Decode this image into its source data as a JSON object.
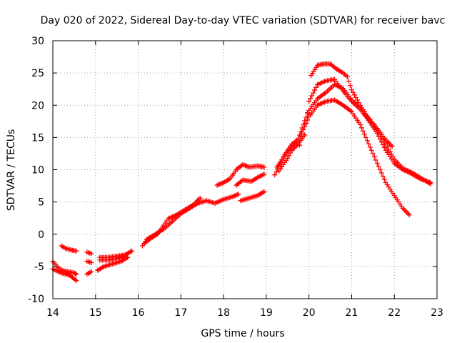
{
  "chart_data": {
    "type": "scatter",
    "title": "Day 020 of 2022, Sidereal Day-to-day VTEC variation (SDTVAR) for receiver bavc",
    "xlabel": "GPS time / hours",
    "ylabel": "SDTVAR / TECUs",
    "xlim": [
      14,
      23
    ],
    "ylim": [
      -10,
      30
    ],
    "xticks": [
      14,
      15,
      16,
      17,
      18,
      19,
      20,
      21,
      22,
      23
    ],
    "yticks": [
      -10,
      -5,
      0,
      5,
      10,
      15,
      20,
      25,
      30
    ],
    "grid": true,
    "marker": "+",
    "color": "#ff0000",
    "series": [
      {
        "name": "satellite-a",
        "segments": [
          [
            [
              14.0,
              -4.2
            ],
            [
              14.1,
              -5.0
            ],
            [
              14.2,
              -5.6
            ],
            [
              14.35,
              -5.8
            ],
            [
              14.5,
              -6.0
            ],
            [
              14.55,
              -6.2
            ]
          ],
          [
            [
              14.8,
              -6.2
            ],
            [
              14.9,
              -5.8
            ]
          ],
          [
            [
              15.05,
              -5.6
            ],
            [
              15.2,
              -5.0
            ],
            [
              15.4,
              -4.6
            ],
            [
              15.6,
              -4.2
            ],
            [
              15.75,
              -3.6
            ]
          ],
          [
            [
              16.1,
              -1.8
            ],
            [
              16.2,
              -0.8
            ],
            [
              16.4,
              0.0
            ],
            [
              16.6,
              0.8
            ],
            [
              16.8,
              2.0
            ],
            [
              17.0,
              3.2
            ],
            [
              17.2,
              4.0
            ],
            [
              17.4,
              4.8
            ],
            [
              17.6,
              5.2
            ],
            [
              17.8,
              4.8
            ],
            [
              18.0,
              5.4
            ],
            [
              18.2,
              5.8
            ],
            [
              18.35,
              6.2
            ]
          ],
          [
            [
              18.3,
              7.6
            ],
            [
              18.45,
              8.4
            ],
            [
              18.65,
              8.2
            ],
            [
              18.8,
              8.8
            ],
            [
              18.95,
              9.3
            ]
          ],
          [
            [
              19.2,
              9.2
            ],
            [
              19.4,
              12.0
            ],
            [
              19.6,
              14.0
            ],
            [
              19.75,
              14.0
            ],
            [
              19.78,
              13.8
            ]
          ],
          [
            [
              19.8,
              15.2
            ],
            [
              20.0,
              18.2
            ],
            [
              20.2,
              20.0
            ],
            [
              20.4,
              20.6
            ],
            [
              20.6,
              20.8
            ],
            [
              20.8,
              20.0
            ],
            [
              21.0,
              19.0
            ],
            [
              21.2,
              17.0
            ],
            [
              21.4,
              14.0
            ],
            [
              21.6,
              11.0
            ],
            [
              21.8,
              8.0
            ],
            [
              22.0,
              6.0
            ],
            [
              22.2,
              4.0
            ],
            [
              22.35,
              3.0
            ]
          ]
        ]
      },
      {
        "name": "satellite-b",
        "segments": [
          [
            [
              14.0,
              -5.4
            ],
            [
              14.2,
              -6.0
            ],
            [
              14.4,
              -6.4
            ],
            [
              14.55,
              -7.2
            ]
          ],
          [
            [
              14.8,
              -4.2
            ],
            [
              14.9,
              -4.4
            ]
          ],
          [
            [
              15.1,
              -3.6
            ],
            [
              15.3,
              -3.6
            ],
            [
              15.5,
              -3.4
            ],
            [
              15.7,
              -3.2
            ],
            [
              15.85,
              -2.6
            ]
          ],
          [
            [
              16.15,
              -1.4
            ],
            [
              16.3,
              -0.6
            ],
            [
              16.45,
              0.0
            ],
            [
              16.6,
              1.4
            ],
            [
              16.7,
              2.4
            ],
            [
              16.9,
              3.0
            ],
            [
              17.1,
              3.8
            ],
            [
              17.3,
              4.6
            ],
            [
              17.45,
              5.6
            ]
          ],
          [
            [
              17.85,
              7.6
            ],
            [
              18.0,
              8.0
            ],
            [
              18.15,
              8.6
            ],
            [
              18.3,
              10.0
            ],
            [
              18.45,
              10.8
            ],
            [
              18.6,
              10.4
            ],
            [
              18.8,
              10.6
            ],
            [
              18.95,
              10.4
            ]
          ],
          [
            [
              19.25,
              10.4
            ],
            [
              19.4,
              11.8
            ],
            [
              19.5,
              12.8
            ],
            [
              19.6,
              13.8
            ],
            [
              19.75,
              14.8
            ],
            [
              19.9,
              17.6
            ],
            [
              20.0,
              19.2
            ],
            [
              20.2,
              21.0
            ],
            [
              20.4,
              22.0
            ],
            [
              20.6,
              23.2
            ],
            [
              20.8,
              22.6
            ],
            [
              21.0,
              20.8
            ],
            [
              21.2,
              19.6
            ],
            [
              21.4,
              17.8
            ],
            [
              21.6,
              16.2
            ],
            [
              21.8,
              14.0
            ],
            [
              22.0,
              11.6
            ],
            [
              22.2,
              10.2
            ],
            [
              22.4,
              9.6
            ],
            [
              22.6,
              8.8
            ],
            [
              22.85,
              7.8
            ]
          ]
        ]
      },
      {
        "name": "satellite-c",
        "segments": [
          [
            [
              14.2,
              -1.8
            ],
            [
              14.3,
              -2.2
            ],
            [
              14.4,
              -2.4
            ],
            [
              14.55,
              -2.6
            ]
          ],
          [
            [
              14.8,
              -2.8
            ],
            [
              14.9,
              -3.0
            ]
          ],
          [
            [
              15.1,
              -4.0
            ],
            [
              15.3,
              -4.0
            ],
            [
              15.5,
              -3.8
            ],
            [
              15.7,
              -3.4
            ]
          ],
          [
            [
              18.4,
              5.2
            ],
            [
              18.6,
              5.6
            ],
            [
              18.8,
              6.0
            ],
            [
              18.95,
              6.6
            ]
          ],
          [
            [
              19.3,
              9.8
            ],
            [
              19.5,
              11.8
            ],
            [
              19.6,
              13.0
            ],
            [
              19.75,
              14.0
            ],
            [
              19.9,
              15.4
            ],
            [
              20.0,
              20.6
            ],
            [
              20.2,
              23.2
            ],
            [
              20.4,
              23.8
            ],
            [
              20.6,
              24.0
            ],
            [
              20.8,
              22.2
            ],
            [
              21.0,
              20.6
            ],
            [
              21.2,
              19.4
            ],
            [
              21.4,
              17.6
            ],
            [
              21.6,
              15.6
            ],
            [
              21.8,
              13.0
            ],
            [
              22.0,
              11.0
            ],
            [
              22.2,
              10.0
            ],
            [
              22.4,
              9.4
            ],
            [
              22.6,
              8.6
            ],
            [
              22.85,
              8.0
            ]
          ]
        ]
      },
      {
        "name": "satellite-d",
        "segments": [
          [
            [
              20.05,
              24.6
            ],
            [
              20.2,
              26.2
            ],
            [
              20.35,
              26.4
            ],
            [
              20.5,
              26.4
            ],
            [
              20.65,
              25.6
            ],
            [
              20.8,
              25.0
            ],
            [
              20.9,
              24.4
            ],
            [
              21.0,
              22.4
            ],
            [
              21.2,
              20.0
            ],
            [
              21.4,
              18.0
            ],
            [
              21.6,
              16.4
            ],
            [
              21.8,
              14.6
            ],
            [
              21.95,
              13.6
            ]
          ]
        ]
      }
    ]
  }
}
